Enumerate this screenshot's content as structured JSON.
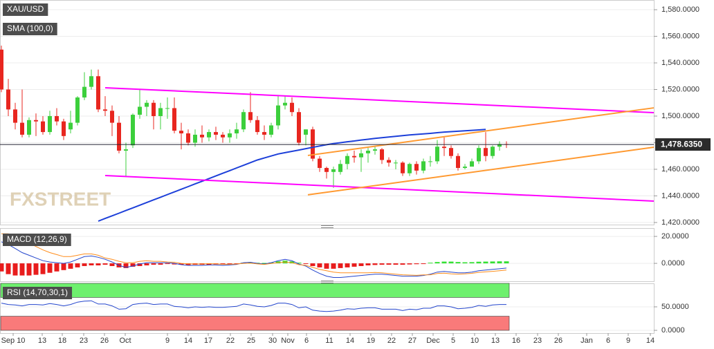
{
  "chart_data": [
    {
      "type": "candlestick",
      "title": "XAU/USD",
      "watermark": "FXSTREET",
      "up_color": "#3ccf3c",
      "down_color": "#e8261f",
      "open": [
        1550,
        1520,
        1505,
        1495,
        1486,
        1497,
        1496,
        1488,
        1500,
        1496,
        1490,
        1495,
        1514,
        1522,
        1530,
        1505,
        1504,
        1495,
        1474,
        1478,
        1501,
        1507,
        1510,
        1500,
        1506,
        1506,
        1489,
        1487,
        1480,
        1486,
        1484,
        1488,
        1486,
        1484,
        1487,
        1490,
        1503,
        1497,
        1488,
        1486,
        1493,
        1508,
        1510,
        1503,
        1486,
        1490,
        1468,
        1461,
        1458,
        1458,
        1464,
        1470,
        1469,
        1472,
        1474,
        1475,
        1467,
        1465,
        1465,
        1457,
        1464,
        1459,
        1466,
        1466,
        1477,
        1476,
        1470,
        1461,
        1462,
        1466,
        1476,
        1470,
        1477,
        1479
      ],
      "high": [
        1553,
        1528,
        1510,
        1520,
        1499,
        1502,
        1500,
        1504,
        1506,
        1498,
        1504,
        1515,
        1533,
        1535,
        1535,
        1515,
        1508,
        1500,
        1480,
        1502,
        1520,
        1512,
        1512,
        1510,
        1514,
        1514,
        1495,
        1490,
        1490,
        1493,
        1490,
        1492,
        1488,
        1490,
        1495,
        1505,
        1518,
        1500,
        1493,
        1495,
        1515,
        1515,
        1514,
        1506,
        1490,
        1492,
        1470,
        1462,
        1462,
        1467,
        1472,
        1474,
        1475,
        1476,
        1477,
        1476,
        1469,
        1467,
        1466,
        1465,
        1466,
        1468,
        1470,
        1482,
        1484,
        1478,
        1472,
        1464,
        1468,
        1478,
        1488,
        1478,
        1481,
        1481
      ],
      "low": [
        1518,
        1500,
        1490,
        1484,
        1484,
        1485,
        1486,
        1486,
        1493,
        1482,
        1487,
        1493,
        1512,
        1520,
        1503,
        1500,
        1485,
        1472,
        1455,
        1476,
        1498,
        1500,
        1490,
        1490,
        1498,
        1487,
        1475,
        1478,
        1477,
        1480,
        1481,
        1482,
        1480,
        1480,
        1483,
        1488,
        1495,
        1486,
        1482,
        1484,
        1490,
        1505,
        1500,
        1478,
        1478,
        1466,
        1458,
        1453,
        1446,
        1456,
        1460,
        1465,
        1458,
        1465,
        1471,
        1464,
        1462,
        1460,
        1455,
        1455,
        1456,
        1457,
        1462,
        1464,
        1470,
        1468,
        1459,
        1460,
        1463,
        1464,
        1466,
        1468,
        1474,
        1476
      ],
      "close": [
        1520,
        1505,
        1495,
        1486,
        1497,
        1496,
        1488,
        1500,
        1496,
        1485,
        1495,
        1514,
        1522,
        1530,
        1505,
        1504,
        1495,
        1474,
        1475,
        1501,
        1507,
        1510,
        1500,
        1506,
        1506,
        1489,
        1487,
        1480,
        1486,
        1484,
        1488,
        1486,
        1484,
        1487,
        1490,
        1503,
        1497,
        1488,
        1486,
        1493,
        1508,
        1510,
        1503,
        1480,
        1490,
        1468,
        1461,
        1458,
        1460,
        1464,
        1470,
        1469,
        1472,
        1474,
        1475,
        1467,
        1465,
        1465,
        1457,
        1464,
        1459,
        1466,
        1466,
        1477,
        1476,
        1470,
        1461,
        1462,
        1466,
        1476,
        1470,
        1477,
        1479,
        1478.635
      ],
      "series": [
        {
          "name": "SMA (100,0)",
          "color": "#1c3fd9",
          "values": [
            null,
            null,
            null,
            null,
            null,
            null,
            null,
            null,
            null,
            null,
            null,
            null,
            null,
            null,
            1421,
            1423,
            1425,
            1427,
            1429,
            1431,
            1433,
            1435,
            1437,
            1439,
            1441,
            1443,
            1445,
            1447,
            1449,
            1451,
            1453,
            1455,
            1457,
            1459,
            1461,
            1463,
            1465,
            1467,
            1468.5,
            1470,
            1471.5,
            1472.5,
            1473.5,
            1474.5,
            1475.5,
            1476.5,
            1477.5,
            1478.5,
            1479.3,
            1480,
            1480.7,
            1481.3,
            1482,
            1482.6,
            1483.2,
            1483.8,
            1484.3,
            1484.8,
            1485.3,
            1485.8,
            1486.2,
            1486.6,
            1487,
            1487.5,
            1488,
            1488.3,
            1488.6,
            1489,
            1489.3,
            1489.6,
            1490,
            null,
            null,
            null
          ]
        }
      ],
      "trendlines": [
        {
          "color": "#ff00ff",
          "x": [
            15,
            94.3
          ],
          "values": [
            1521.3,
            1502.6
          ]
        },
        {
          "color": "#ff00ff",
          "x": [
            15,
            94.3
          ],
          "values": [
            1455.3,
            1436.1
          ]
        },
        {
          "color": "#ff9930",
          "x": [
            44.3,
            94.3
          ],
          "values": [
            1440.8,
            1476.6
          ]
        },
        {
          "color": "#ff9930",
          "x": [
            44.3,
            94.3
          ],
          "values": [
            1470.4,
            1506.2
          ]
        }
      ],
      "last_price": {
        "value": 1478.635,
        "label": "1,478.6350"
      },
      "xlim": [
        -0.2,
        94.3
      ],
      "ylim": [
        1418.4,
        1587.3
      ],
      "yticks": [
        {
          "value": 1420,
          "label": "1,420.0000"
        },
        {
          "value": 1440,
          "label": "1,440.0000"
        },
        {
          "value": 1460,
          "label": "1,460.0000"
        },
        {
          "value": 1480,
          "label": "1,480.0000"
        },
        {
          "value": 1500,
          "label": "1,500.0000"
        },
        {
          "value": 1520,
          "label": "1,520.0000"
        },
        {
          "value": 1540,
          "label": "1,540.0000"
        },
        {
          "value": 1560,
          "label": "1,560.0000"
        },
        {
          "value": 1580,
          "label": "1,580.0000"
        }
      ],
      "grid": true
    },
    {
      "type": "macd",
      "title": "MACD (12,26,9)",
      "up_color": "#33e033",
      "down_color": "#e81c1c",
      "values": [
        -6,
        -8,
        -9,
        -9,
        -9,
        -8.5,
        -8,
        -7,
        -6,
        -5,
        -4,
        -3,
        -2,
        -1.5,
        -1.5,
        -1,
        -2,
        -3,
        -3.5,
        -2.5,
        -2,
        -1.5,
        -1,
        -1,
        -0.5,
        -0.8,
        -1,
        -1.2,
        -1,
        -1,
        -1,
        -0.8,
        -0.8,
        -0.5,
        -0.3,
        0.5,
        0.6,
        0.4,
        0.3,
        0.6,
        1.5,
        2,
        1.5,
        0.5,
        -0.5,
        -2,
        -3,
        -4,
        -4,
        -3.5,
        -3,
        -2.5,
        -2,
        -1.5,
        -1.2,
        -1,
        -1,
        -1,
        -1,
        -0.8,
        -0.6,
        -0.4,
        0.5,
        1,
        1.3,
        1.3,
        1,
        0.8,
        0.9,
        1.2,
        1.3,
        1.4,
        1.5,
        1.5
      ],
      "series": [
        {
          "color": "#2244cc",
          "values": [
            16,
            14,
            11,
            8,
            6,
            4,
            2,
            1,
            0.5,
            0,
            1,
            3,
            5,
            5.5,
            4.5,
            3,
            1,
            -1.5,
            -3,
            -2,
            -0.5,
            0.5,
            0.5,
            0.5,
            0.5,
            0,
            -1,
            -1.5,
            -1.5,
            -1.5,
            -1.2,
            -1.2,
            -1.5,
            -1.2,
            -0.8,
            0.5,
            0.8,
            0,
            -0.5,
            0.5,
            2,
            3,
            2,
            -0.5,
            -2,
            -5,
            -7.5,
            -9.5,
            -10.5,
            -10.5,
            -10,
            -9.5,
            -9,
            -8.5,
            -8,
            -8,
            -8.5,
            -9,
            -9.5,
            -9.5,
            -9.5,
            -9,
            -8,
            -6.5,
            -6,
            -6.5,
            -7,
            -7,
            -6.5,
            -5.5,
            -5,
            -4.5,
            -4,
            -3.5
          ]
        },
        {
          "color": "#ff8c1a",
          "values": [
            22,
            22,
            20,
            17,
            15,
            12.5,
            10,
            8,
            6.5,
            5,
            5,
            6,
            7,
            7,
            6,
            4,
            3,
            1.5,
            0.5,
            0.5,
            1.5,
            2,
            1.5,
            1.5,
            1,
            0.8,
            0,
            -0.3,
            -0.5,
            -0.5,
            -0.2,
            -0.4,
            -0.7,
            -0.7,
            -0.5,
            0,
            0.2,
            -0.4,
            -0.8,
            -0.1,
            0.5,
            1,
            0.5,
            -1,
            -1.5,
            -3,
            -4.5,
            -5.5,
            -6.5,
            -7,
            -7,
            -7,
            -7,
            -7,
            -6.8,
            -7,
            -7.5,
            -8,
            -8.5,
            -8.7,
            -8.9,
            -8.6,
            -8.5,
            -7.5,
            -7.3,
            -7.8,
            -8,
            -7.8,
            -7.4,
            -6.7,
            -6.3,
            -5.9,
            -5.5,
            -5
          ]
        }
      ],
      "xlim": [
        -0.2,
        94.3
      ],
      "ylim": [
        -13.3,
        26.2
      ],
      "yticks": [
        {
          "value": 0,
          "label": "0.0000"
        },
        {
          "value": 20,
          "label": "20.0000"
        }
      ],
      "grid": true
    },
    {
      "type": "rsi",
      "title": "RSI (14,70,30,1)",
      "bands": [
        {
          "from": 70,
          "to": 100,
          "color": "#6ef06e"
        },
        {
          "from": 0,
          "to": 30,
          "color": "#f97a7a"
        }
      ],
      "series": [
        {
          "color": "#2244cc",
          "values": [
            58,
            55,
            54,
            52,
            55,
            55,
            54,
            57,
            55,
            52,
            55,
            60,
            62,
            63,
            56,
            56,
            52,
            45,
            46,
            55,
            57,
            58,
            55,
            56,
            56,
            51,
            50,
            48,
            50,
            49,
            50,
            49,
            49,
            50,
            51,
            56,
            54,
            51,
            50,
            53,
            58,
            58,
            55,
            48,
            50,
            43,
            41,
            40,
            41,
            43,
            46,
            45,
            47,
            48,
            48,
            45,
            45,
            45,
            42,
            45,
            44,
            47,
            47,
            52,
            52,
            50,
            46,
            47,
            49,
            53,
            51,
            54,
            55,
            55
          ]
        }
      ],
      "xlim": [
        -0.2,
        94.3
      ],
      "ylim": [
        -5.9,
        100
      ],
      "yticks": [
        {
          "value": 0,
          "label": "0.0000"
        },
        {
          "value": 50,
          "label": "50.0000"
        }
      ],
      "grid": true,
      "xticks": [
        {
          "value": 1.7,
          "label": "Sep 10"
        },
        {
          "value": 5.9,
          "label": "13"
        },
        {
          "value": 8.8,
          "label": "18"
        },
        {
          "value": 11.9,
          "label": "23"
        },
        {
          "value": 14.9,
          "label": "26"
        },
        {
          "value": 17.9,
          "label": "Oct"
        },
        {
          "value": 24,
          "label": "9"
        },
        {
          "value": 27,
          "label": "14"
        },
        {
          "value": 29.9,
          "label": "17"
        },
        {
          "value": 33.1,
          "label": "22"
        },
        {
          "value": 36.1,
          "label": "25"
        },
        {
          "value": 39.2,
          "label": "30"
        },
        {
          "value": 41.4,
          "label": "Nov"
        },
        {
          "value": 44.1,
          "label": "6"
        },
        {
          "value": 47.4,
          "label": "11"
        },
        {
          "value": 50.4,
          "label": "14"
        },
        {
          "value": 53.4,
          "label": "19"
        },
        {
          "value": 56.4,
          "label": "22"
        },
        {
          "value": 59.4,
          "label": "27"
        },
        {
          "value": 62.4,
          "label": "Dec"
        },
        {
          "value": 65.3,
          "label": "5"
        },
        {
          "value": 68.4,
          "label": "10"
        },
        {
          "value": 71.4,
          "label": "13"
        },
        {
          "value": 74.4,
          "label": "16"
        },
        {
          "value": 77.5,
          "label": "23"
        },
        {
          "value": 80.5,
          "label": "26"
        },
        {
          "value": 84.6,
          "label": "Jan"
        },
        {
          "value": 87.7,
          "label": "6"
        },
        {
          "value": 90.6,
          "label": "9"
        },
        {
          "value": 93.8,
          "label": "14"
        }
      ]
    }
  ]
}
